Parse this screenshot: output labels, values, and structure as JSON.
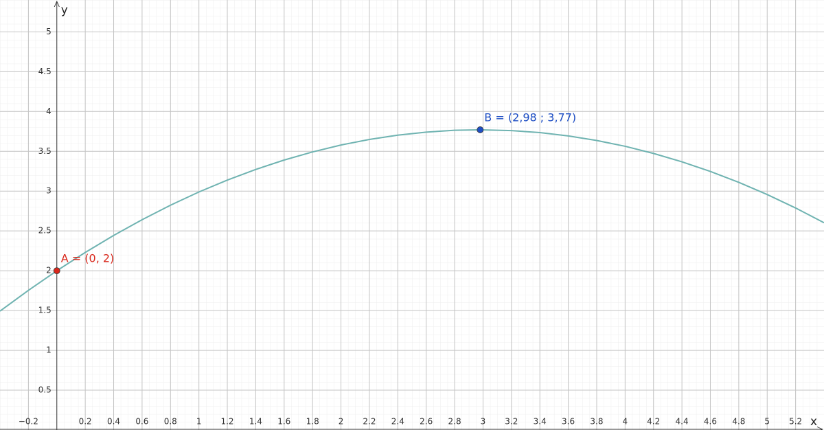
{
  "chart_data": {
    "type": "function-plot",
    "x_label": "x",
    "y_label": "y",
    "xlim": [
      -0.4,
      5.4
    ],
    "ylim": [
      0,
      5.4
    ],
    "xticks": [
      {
        "value": -0.2,
        "label": "−0.2"
      },
      0.2,
      0.4,
      0.6,
      0.8,
      1,
      1.2,
      1.4,
      1.6,
      1.8,
      2,
      2.2,
      2.4,
      2.6,
      2.8,
      3,
      3.2,
      3.4,
      3.6,
      3.8,
      4,
      4.2,
      4.4,
      4.6,
      4.8,
      5,
      5.2
    ],
    "yticks": [
      0.5,
      1,
      1.5,
      2,
      2.5,
      3,
      3.5,
      4,
      4.5,
      5
    ],
    "grid": true,
    "x": [
      -0.4,
      -0.2,
      0,
      0.2,
      0.4,
      0.6,
      0.8,
      1,
      1.2,
      1.4,
      1.6,
      1.8,
      2,
      2.2,
      2.4,
      2.6,
      2.8,
      2.98,
      3.2,
      3.4,
      3.6,
      3.8,
      4,
      4.2,
      4.4,
      4.6,
      4.8,
      5,
      5.2,
      5.4
    ],
    "series": [
      {
        "color": "#6fb3b1",
        "values": [
          1.493,
          1.754,
          2.0,
          2.23,
          2.443,
          2.641,
          2.823,
          2.989,
          3.138,
          3.272,
          3.39,
          3.492,
          3.579,
          3.649,
          3.703,
          3.741,
          3.764,
          3.77,
          3.76,
          3.735,
          3.693,
          3.636,
          3.563,
          3.473,
          3.368,
          3.247,
          3.11,
          2.957,
          2.788,
          2.603
        ]
      }
    ],
    "points": [
      {
        "label": "A = (0, 2)",
        "x": 0,
        "y": 2,
        "color": "#d9281c"
      },
      {
        "label": "B = (2,98 ; 3,77)",
        "x": 2.98,
        "y": 3.77,
        "color": "#1f4fc4"
      }
    ]
  }
}
